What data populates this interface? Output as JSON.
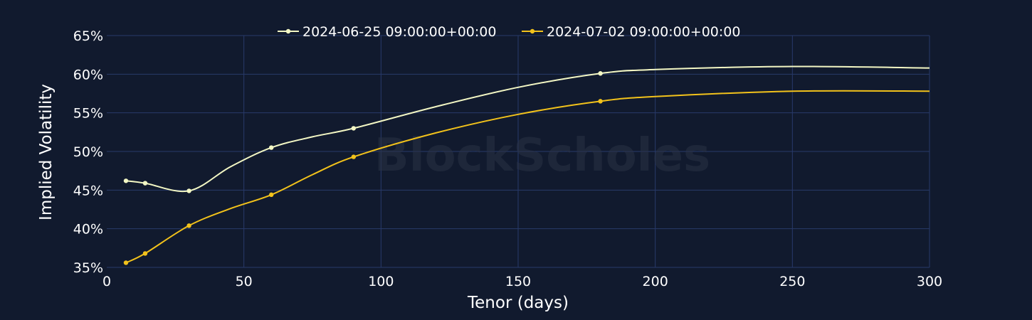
{
  "chart_data": {
    "type": "line",
    "xlabel": "Tenor (days)",
    "ylabel": "Implied Volatility",
    "xlim": [
      0,
      300
    ],
    "ylim": [
      35,
      65
    ],
    "x_ticks": [
      0,
      50,
      100,
      150,
      200,
      250,
      300
    ],
    "y_ticks": [
      35,
      40,
      45,
      50,
      55,
      60,
      65
    ],
    "y_tick_labels": [
      "35%",
      "40%",
      "45%",
      "50%",
      "55%",
      "60%",
      "65%"
    ],
    "grid": true,
    "legend_position": "top-center",
    "watermark": "BlockScholes",
    "series": [
      {
        "name": "2024-06-25 09:00:00+00:00",
        "color": "#f3f7c4",
        "marker_x": [
          7,
          14,
          30,
          60,
          90,
          180
        ],
        "marker_y": [
          46.2,
          45.9,
          44.9,
          50.5,
          53.0,
          60.1
        ],
        "curve_x": [
          7,
          14,
          30,
          45,
          60,
          75,
          90,
          120,
          150,
          180,
          200,
          250,
          300
        ],
        "curve_y": [
          46.2,
          45.9,
          44.9,
          48.0,
          50.5,
          51.9,
          53.0,
          55.8,
          58.3,
          60.1,
          60.6,
          61.0,
          60.8
        ]
      },
      {
        "name": "2024-07-02 09:00:00+00:00",
        "color": "#f2c21b",
        "marker_x": [
          7,
          14,
          30,
          60,
          90,
          180
        ],
        "marker_y": [
          35.6,
          36.8,
          40.4,
          44.4,
          49.3,
          56.5
        ],
        "curve_x": [
          7,
          14,
          30,
          45,
          60,
          75,
          90,
          120,
          150,
          180,
          200,
          250,
          300
        ],
        "curve_y": [
          35.6,
          36.8,
          40.4,
          42.6,
          44.4,
          47.0,
          49.3,
          52.4,
          54.8,
          56.5,
          57.1,
          57.8,
          57.8
        ]
      }
    ]
  }
}
